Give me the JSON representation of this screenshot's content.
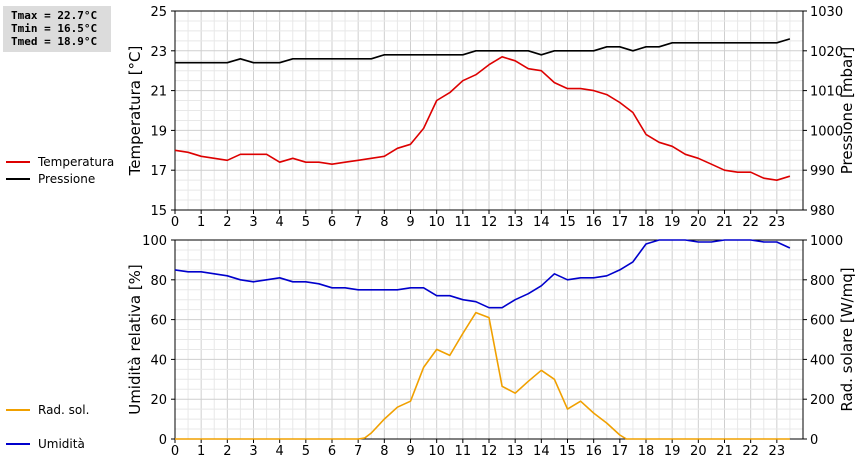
{
  "stats": {
    "tmax": "Tmax = 22.7°C",
    "tmin": "Tmin = 16.5°C",
    "tmed": "Tmed = 18.9°C"
  },
  "chart_data": [
    {
      "type": "line",
      "title": "",
      "xlabel": "",
      "ylabel": "Temperatura [°C]",
      "y2label": "Pressione [mbar]",
      "xlim": [
        0,
        24
      ],
      "xticks": [
        0,
        1,
        2,
        3,
        4,
        5,
        6,
        7,
        8,
        9,
        10,
        11,
        12,
        13,
        14,
        15,
        16,
        17,
        18,
        19,
        20,
        21,
        22,
        23
      ],
      "ylim": [
        15,
        25
      ],
      "yticks": [
        15,
        17,
        19,
        21,
        23,
        25
      ],
      "y2lim": [
        980,
        1030
      ],
      "y2ticks": [
        980,
        990,
        1000,
        1010,
        1020,
        1030
      ],
      "grid": true,
      "legend_position": "left",
      "series": [
        {
          "name": "Temperatura",
          "axis": "left",
          "color": "#dd0000",
          "x": [
            0,
            0.5,
            1,
            1.5,
            2,
            2.5,
            3,
            3.5,
            4,
            4.5,
            5,
            5.5,
            6,
            6.5,
            7,
            7.5,
            8,
            8.5,
            9,
            9.5,
            10,
            10.5,
            11,
            11.5,
            12,
            12.5,
            13,
            13.5,
            14,
            14.5,
            15,
            15.5,
            16,
            16.5,
            17,
            17.5,
            18,
            18.5,
            19,
            19.5,
            20,
            20.5,
            21,
            21.5,
            22,
            22.5,
            23,
            23.5
          ],
          "values": [
            18.0,
            17.9,
            17.7,
            17.6,
            17.5,
            17.8,
            17.8,
            17.8,
            17.4,
            17.6,
            17.4,
            17.4,
            17.3,
            17.4,
            17.5,
            17.6,
            17.7,
            18.1,
            18.3,
            19.1,
            20.5,
            20.9,
            21.5,
            21.8,
            22.3,
            22.7,
            22.5,
            22.1,
            22.0,
            21.4,
            21.1,
            21.1,
            21.0,
            20.8,
            20.4,
            19.9,
            18.8,
            18.4,
            18.2,
            17.8,
            17.6,
            17.3,
            17.0,
            16.9,
            16.9,
            16.6,
            16.5,
            16.7
          ]
        },
        {
          "name": "Pressione",
          "axis": "right",
          "color": "#000000",
          "x": [
            0,
            0.5,
            1,
            1.5,
            2,
            2.5,
            3,
            3.5,
            4,
            4.5,
            5,
            5.5,
            6,
            6.5,
            7,
            7.5,
            8,
            8.5,
            9,
            9.5,
            10,
            10.5,
            11,
            11.5,
            12,
            12.5,
            13,
            13.5,
            14,
            14.5,
            15,
            15.5,
            16,
            16.5,
            17,
            17.5,
            18,
            18.5,
            19,
            19.5,
            20,
            20.5,
            21,
            21.5,
            22,
            22.5,
            23,
            23.5
          ],
          "values": [
            1017,
            1017,
            1017,
            1017,
            1017,
            1018,
            1017,
            1017,
            1017,
            1018,
            1018,
            1018,
            1018,
            1018,
            1018,
            1018,
            1019,
            1019,
            1019,
            1019,
            1019,
            1019,
            1019,
            1020,
            1020,
            1020,
            1020,
            1020,
            1019,
            1020,
            1020,
            1020,
            1020,
            1021,
            1021,
            1020,
            1021,
            1021,
            1022,
            1022,
            1022,
            1022,
            1022,
            1022,
            1022,
            1022,
            1022,
            1023
          ]
        }
      ]
    },
    {
      "type": "line",
      "title": "",
      "xlabel": "",
      "ylabel": "Umidità relativa [%]",
      "y2label": "Rad. solare [W/mq]",
      "xlim": [
        0,
        24
      ],
      "xticks": [
        0,
        1,
        2,
        3,
        4,
        5,
        6,
        7,
        8,
        9,
        10,
        11,
        12,
        13,
        14,
        15,
        16,
        17,
        18,
        19,
        20,
        21,
        22,
        23
      ],
      "ylim": [
        0,
        100
      ],
      "yticks": [
        0,
        20,
        40,
        60,
        80,
        100
      ],
      "y2lim": [
        0,
        1000
      ],
      "y2ticks": [
        0,
        200,
        400,
        600,
        800,
        1000
      ],
      "grid": true,
      "legend_position": "left",
      "series": [
        {
          "name": "Umidità",
          "axis": "left",
          "color": "#0000cc",
          "x": [
            0,
            0.5,
            1,
            1.5,
            2,
            2.5,
            3,
            3.5,
            4,
            4.5,
            5,
            5.5,
            6,
            6.5,
            7,
            7.5,
            8,
            8.5,
            9,
            9.5,
            10,
            10.5,
            11,
            11.5,
            12,
            12.5,
            13,
            13.5,
            14,
            14.5,
            15,
            15.5,
            16,
            16.5,
            17,
            17.5,
            18,
            18.5,
            19,
            19.5,
            20,
            20.5,
            21,
            21.5,
            22,
            22.5,
            23,
            23.5
          ],
          "values": [
            85,
            84,
            84,
            83,
            82,
            80,
            79,
            80,
            81,
            79,
            79,
            78,
            76,
            76,
            75,
            75,
            75,
            75,
            76,
            76,
            72,
            72,
            70,
            69,
            66,
            66,
            70,
            73,
            77,
            83,
            80,
            81,
            81,
            82,
            85,
            89,
            98,
            100,
            100,
            100,
            99,
            99,
            100,
            100,
            100,
            99,
            99,
            96
          ]
        },
        {
          "name": "Rad. sol.",
          "axis": "right",
          "color": "#f0a000",
          "x": [
            0,
            0.5,
            1,
            1.5,
            2,
            2.5,
            3,
            3.5,
            4,
            4.5,
            5,
            5.5,
            6,
            6.5,
            7,
            7.25,
            7.5,
            8,
            8.5,
            9,
            9.5,
            10,
            10.5,
            11,
            11.5,
            12,
            12.5,
            13,
            13.5,
            14,
            14.5,
            15,
            15.5,
            16,
            16.5,
            17,
            17.25,
            17.5,
            18,
            18.5,
            19,
            19.5,
            20,
            20.5,
            21,
            21.5,
            22,
            22.5,
            23,
            23.5
          ],
          "values": [
            0,
            0,
            0,
            0,
            0,
            0,
            0,
            0,
            0,
            0,
            0,
            0,
            0,
            0,
            0,
            5,
            30,
            100,
            160,
            190,
            360,
            450,
            420,
            530,
            635,
            610,
            265,
            230,
            290,
            345,
            300,
            150,
            190,
            130,
            80,
            20,
            0,
            0,
            0,
            0,
            0,
            0,
            0,
            0,
            0,
            0,
            0,
            0,
            0,
            0
          ]
        }
      ]
    }
  ]
}
